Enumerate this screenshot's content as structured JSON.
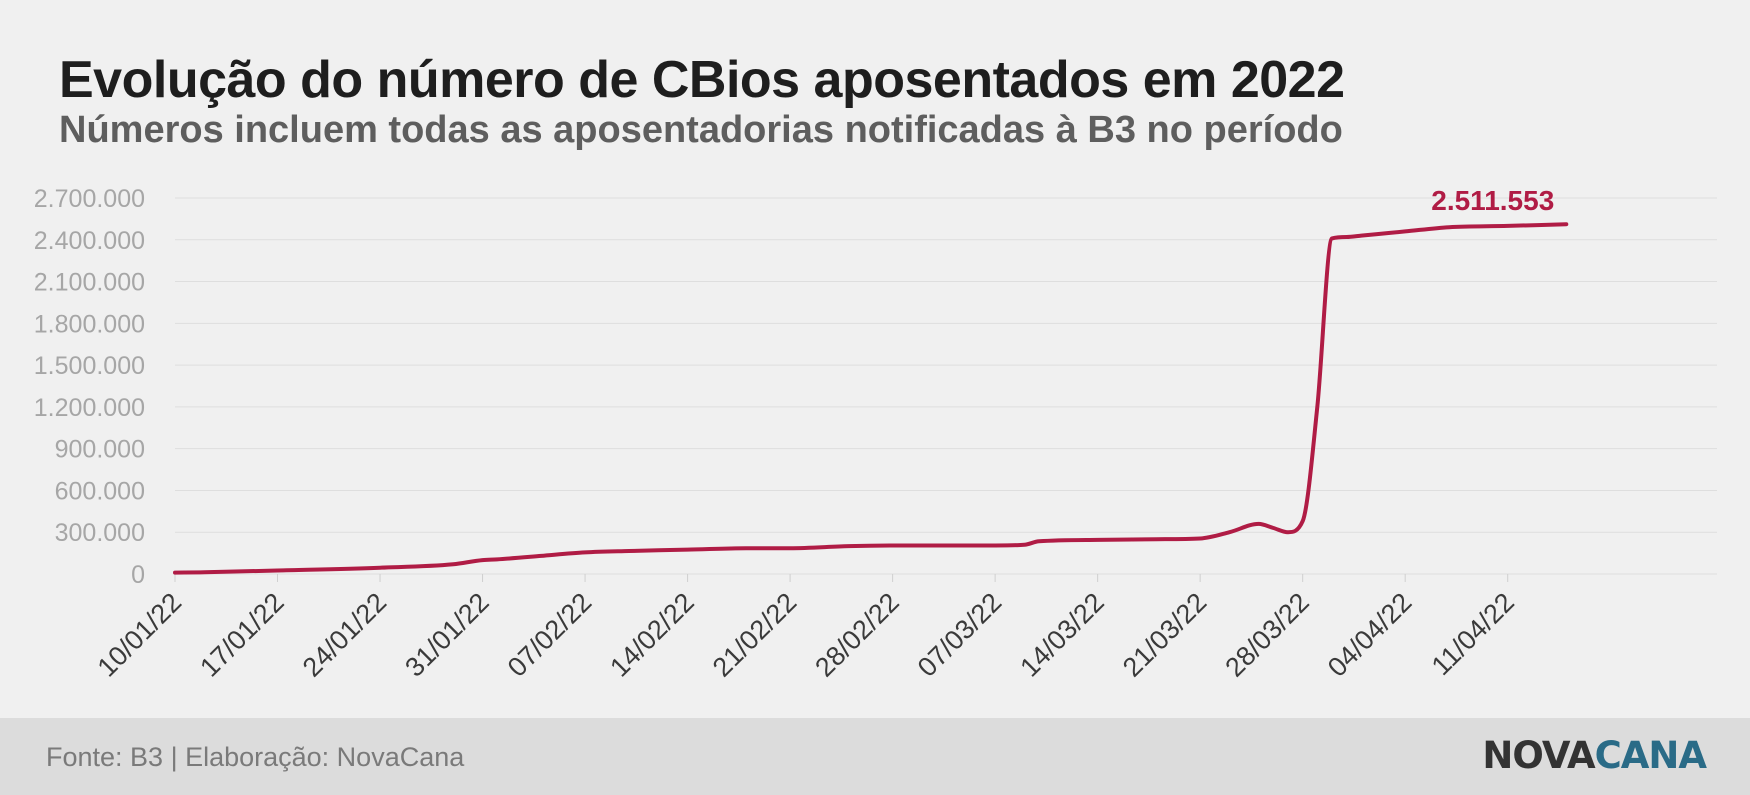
{
  "header": {
    "title": "Evolução do número de CBios aposentados em 2022",
    "subtitle": "Números incluem todas as aposentadorias notificadas à B3 no período"
  },
  "footer": {
    "source": "Fonte: B3 | Elaboração: NovaCana",
    "logo_part1": "NOVA",
    "logo_part2": "CANA"
  },
  "colors": {
    "line": "#b01c45",
    "axis_text": "#a6a6a6",
    "grid": "#dedede",
    "logo_dark": "#333333",
    "logo_accent": "#2a6b87"
  },
  "chart_data": {
    "type": "line",
    "title": "Evolução do número de CBios aposentados em 2022",
    "subtitle": "Números incluem todas as aposentadorias notificadas à B3 no período",
    "xlabel": "",
    "ylabel": "",
    "ylim": [
      0,
      2700000
    ],
    "yticks": [
      0,
      300000,
      600000,
      900000,
      1200000,
      1500000,
      1800000,
      2100000,
      2400000,
      2700000
    ],
    "ytick_labels": [
      "0",
      "300.000",
      "600.000",
      "900.000",
      "1.200.000",
      "1.500.000",
      "1.800.000",
      "2.100.000",
      "2.400.000",
      "2.700.000"
    ],
    "xlim": [
      "2022-01-10",
      "2022-04-15"
    ],
    "xticks": [
      "2022-01-10",
      "2022-01-17",
      "2022-01-24",
      "2022-01-31",
      "2022-02-07",
      "2022-02-14",
      "2022-02-21",
      "2022-02-28",
      "2022-03-07",
      "2022-03-14",
      "2022-03-21",
      "2022-03-28",
      "2022-04-04",
      "2022-04-11"
    ],
    "xtick_labels": [
      "10/01/22",
      "17/01/22",
      "24/01/22",
      "31/01/22",
      "07/02/22",
      "14/02/22",
      "21/02/22",
      "28/02/22",
      "07/03/22",
      "14/03/22",
      "21/03/22",
      "28/03/22",
      "04/04/22",
      "11/04/22"
    ],
    "grid": true,
    "series": [
      {
        "x": [
          "2022-01-10",
          "2022-01-12",
          "2022-01-17",
          "2022-01-24",
          "2022-01-29",
          "2022-01-31",
          "2022-02-01",
          "2022-02-04",
          "2022-02-07",
          "2022-02-10",
          "2022-02-14",
          "2022-02-18",
          "2022-02-21",
          "2022-02-25",
          "2022-03-01",
          "2022-03-07",
          "2022-03-09",
          "2022-03-10",
          "2022-03-14",
          "2022-03-18",
          "2022-03-21",
          "2022-03-23",
          "2022-03-25",
          "2022-03-26",
          "2022-03-27",
          "2022-03-28",
          "2022-03-29",
          "2022-03-30",
          "2022-03-31",
          "2022-04-01",
          "2022-04-02",
          "2022-04-04",
          "2022-04-07",
          "2022-04-11",
          "2022-04-15"
        ],
        "values": [
          10000,
          12000,
          25000,
          45000,
          70000,
          100000,
          105000,
          130000,
          155000,
          165000,
          175000,
          185000,
          185000,
          200000,
          205000,
          205000,
          210000,
          235000,
          245000,
          250000,
          255000,
          300000,
          360000,
          330000,
          300000,
          380000,
          1200000,
          2410000,
          2420000,
          2430000,
          2440000,
          2460000,
          2490000,
          2500000,
          2511553
        ]
      }
    ],
    "annotations": [
      {
        "text": "2.511.553",
        "x": "2022-04-15",
        "y": 2511553
      }
    ]
  }
}
